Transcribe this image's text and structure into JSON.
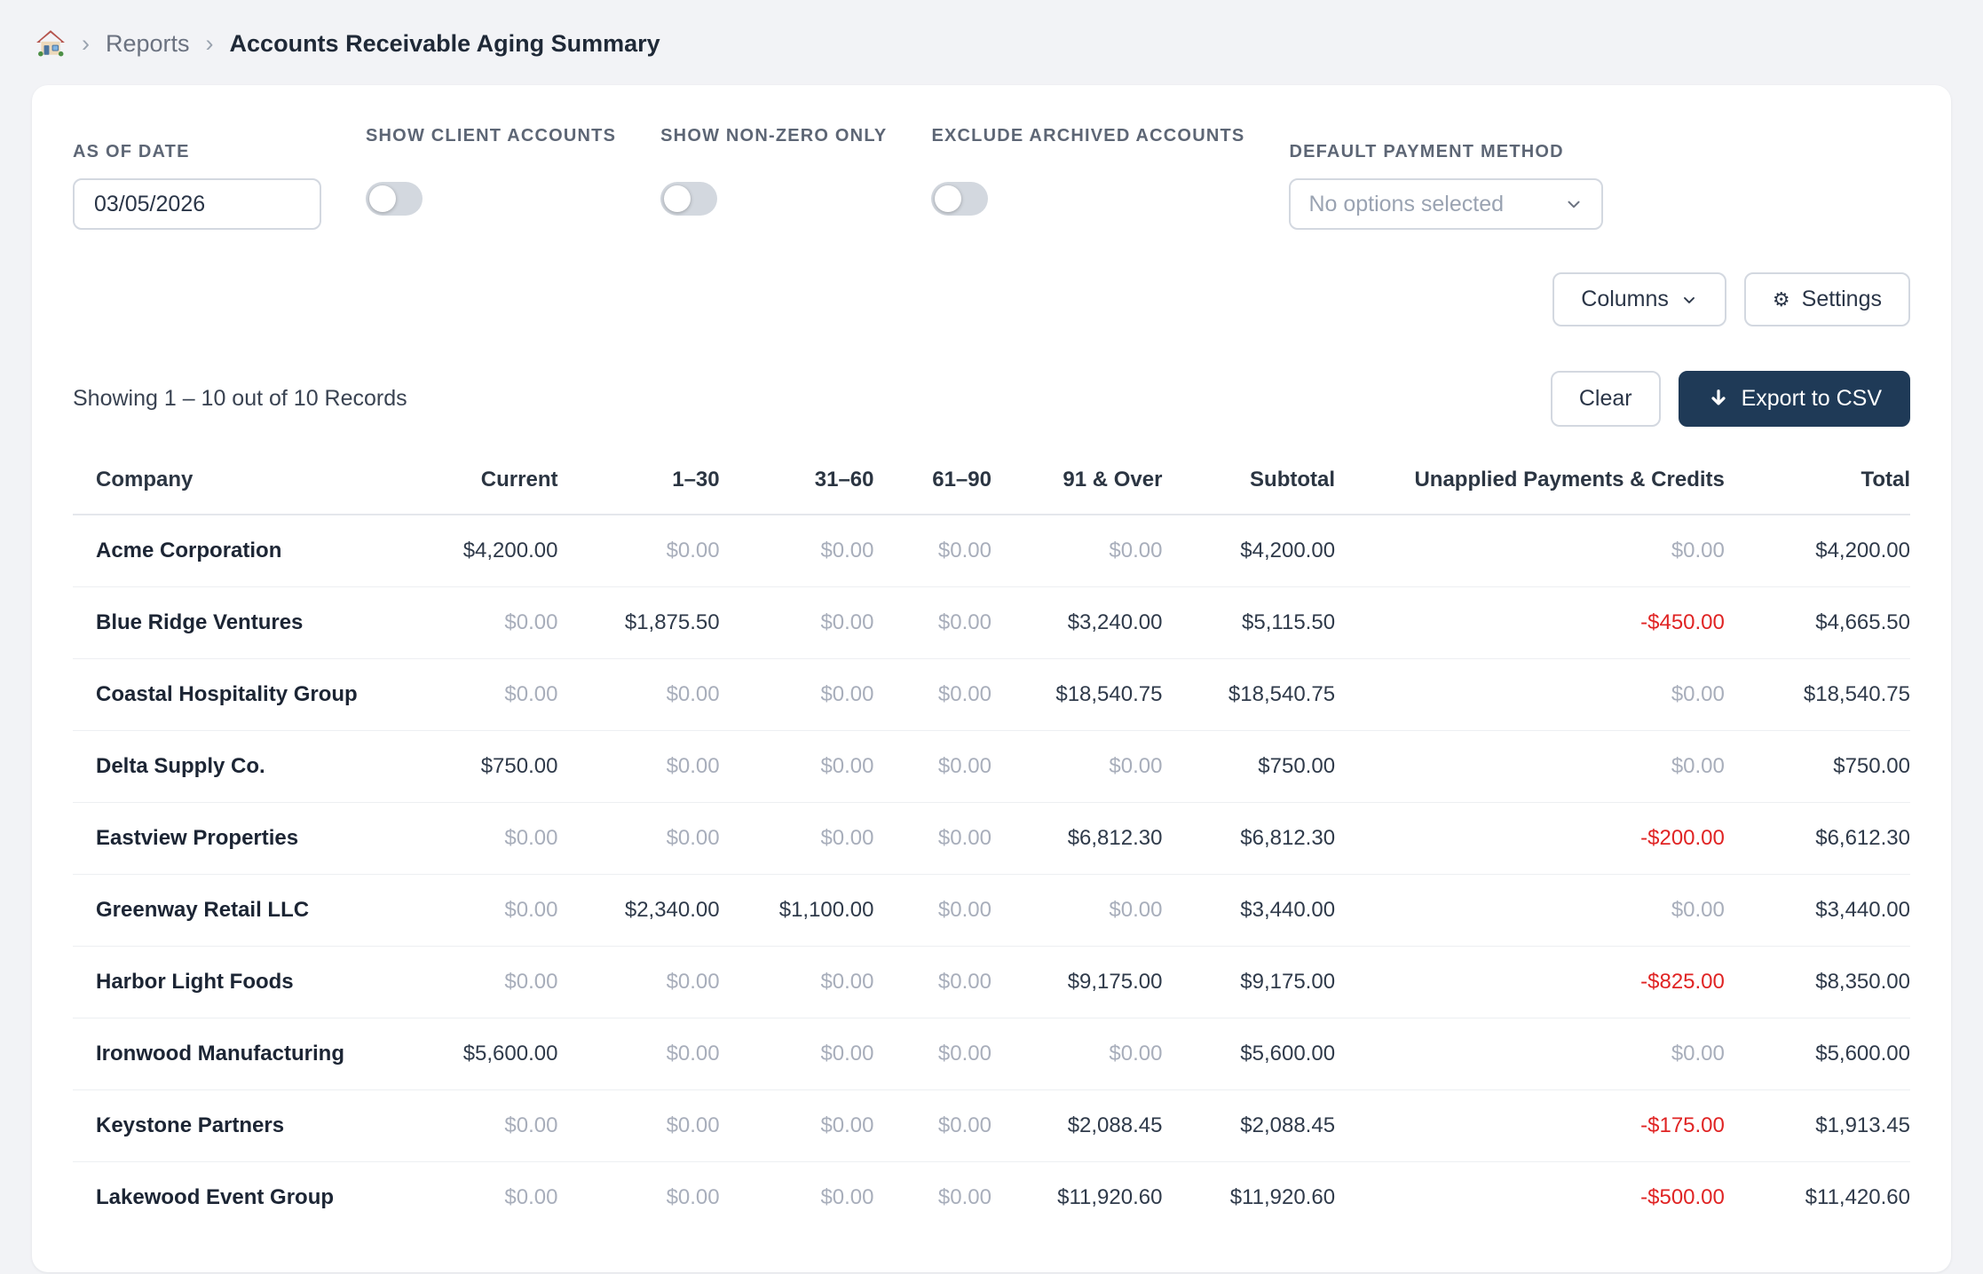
{
  "breadcrumb": {
    "home_icon": "house",
    "separator": "›",
    "reports_label": "Reports",
    "current_label": "Accounts Receivable Aging Summary"
  },
  "filters": {
    "as_of_date": {
      "label": "AS OF DATE",
      "value": "03/05/2026"
    },
    "toggles": [
      {
        "label": "SHOW CLIENT ACCOUNTS",
        "state": "off"
      },
      {
        "label": "SHOW NON-ZERO ONLY",
        "state": "off"
      },
      {
        "label": "EXCLUDE ARCHIVED ACCOUNTS",
        "state": "off"
      }
    ],
    "default_payment_method": {
      "label": "DEFAULT PAYMENT METHOD",
      "value": "No options selected"
    }
  },
  "toolbar": {
    "columns_label": "Columns",
    "settings_label": "Settings",
    "clear_label": "Clear",
    "export_label": "Export to CSV"
  },
  "summary": {
    "showing_text": "Showing 1 – 10 out of 10 Records"
  },
  "table": {
    "columns": [
      "Company",
      "Current",
      "1–30",
      "31–60",
      "61–90",
      "91 & Over",
      "Subtotal",
      "Unapplied Payments & Credits",
      "Total"
    ],
    "rows": [
      [
        "Acme Corporation",
        "$4,200.00",
        "$0.00",
        "$0.00",
        "$0.00",
        "$0.00",
        "$4,200.00",
        "$0.00",
        "$4,200.00"
      ],
      [
        "Blue Ridge Ventures",
        "$0.00",
        "$1,875.50",
        "$0.00",
        "$0.00",
        "$3,240.00",
        "$5,115.50",
        "-$450.00",
        "$4,665.50"
      ],
      [
        "Coastal Hospitality Group",
        "$0.00",
        "$0.00",
        "$0.00",
        "$0.00",
        "$18,540.75",
        "$18,540.75",
        "$0.00",
        "$18,540.75"
      ],
      [
        "Delta Supply Co.",
        "$750.00",
        "$0.00",
        "$0.00",
        "$0.00",
        "$0.00",
        "$750.00",
        "$0.00",
        "$750.00"
      ],
      [
        "Eastview Properties",
        "$0.00",
        "$0.00",
        "$0.00",
        "$0.00",
        "$6,812.30",
        "$6,812.30",
        "-$200.00",
        "$6,612.30"
      ],
      [
        "Greenway Retail LLC",
        "$0.00",
        "$2,340.00",
        "$1,100.00",
        "$0.00",
        "$0.00",
        "$3,440.00",
        "$0.00",
        "$3,440.00"
      ],
      [
        "Harbor Light Foods",
        "$0.00",
        "$0.00",
        "$0.00",
        "$0.00",
        "$9,175.00",
        "$9,175.00",
        "-$825.00",
        "$8,350.00"
      ],
      [
        "Ironwood Manufacturing",
        "$5,600.00",
        "$0.00",
        "$0.00",
        "$0.00",
        "$0.00",
        "$5,600.00",
        "$0.00",
        "$5,600.00"
      ],
      [
        "Keystone Partners",
        "$0.00",
        "$0.00",
        "$0.00",
        "$0.00",
        "$2,088.45",
        "$2,088.45",
        "-$175.00",
        "$1,913.45"
      ],
      [
        "Lakewood Event Group",
        "$0.00",
        "$0.00",
        "$0.00",
        "$0.00",
        "$11,920.60",
        "$11,920.60",
        "-$500.00",
        "$11,420.60"
      ]
    ]
  },
  "icons": {
    "home": "house",
    "columns_chevron": "chevron-down",
    "settings": "gear",
    "export": "arrow-down",
    "dropdown_chevron": "chevron-down"
  },
  "colors": {
    "accent_navy": "#1f3a57",
    "negative_red": "#e02424",
    "zero_gray": "#a8aebb",
    "page_background": "#f2f3f6"
  }
}
